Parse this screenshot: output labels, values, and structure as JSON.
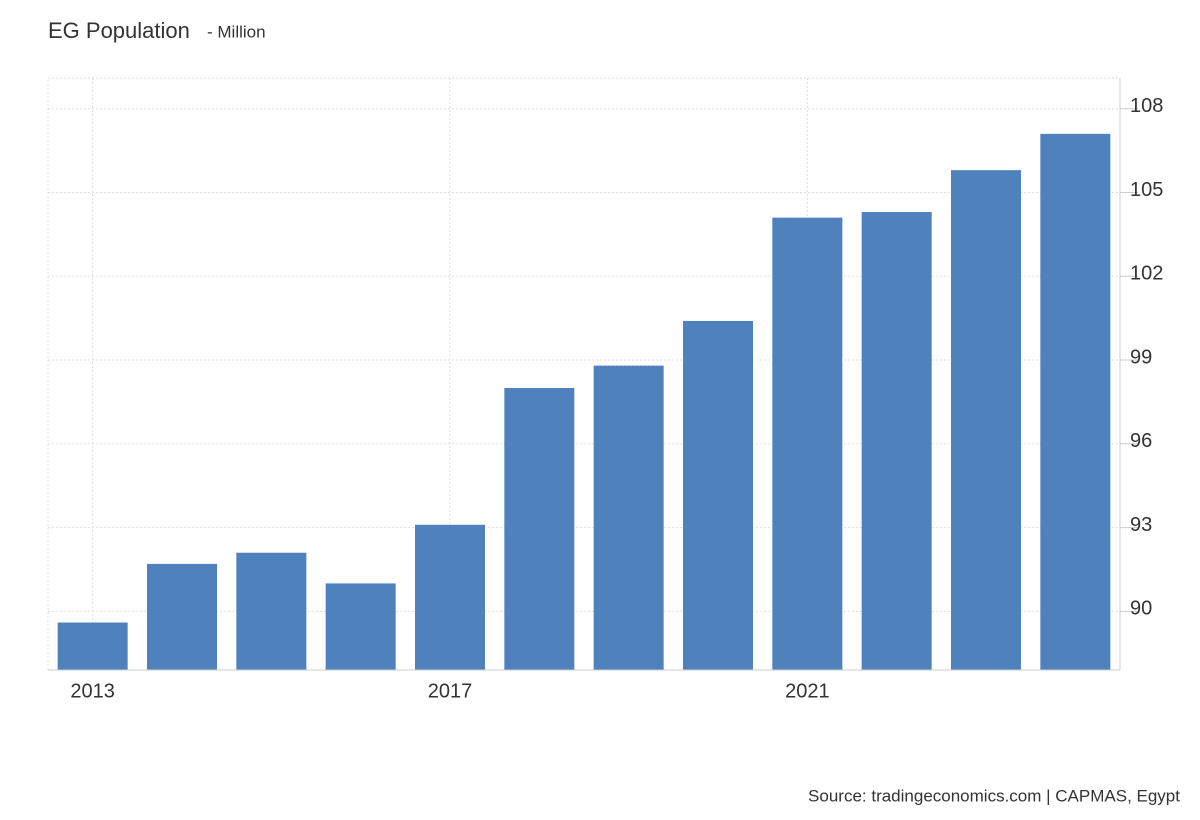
{
  "chart_data": {
    "type": "bar",
    "title": "EG Population",
    "subtitle": "- Million",
    "categories": [
      "2013",
      null,
      null,
      null,
      "2017",
      null,
      null,
      null,
      "2021",
      null,
      null,
      null
    ],
    "values": [
      89.6,
      91.7,
      92.1,
      91.0,
      93.1,
      98.0,
      98.8,
      100.4,
      104.1,
      104.3,
      105.8,
      107.1
    ],
    "color": "#4f81bd",
    "ylim": [
      87.9,
      109.1
    ],
    "yticks": [
      90,
      93,
      96,
      99,
      102,
      105,
      108
    ],
    "grid": true,
    "source": "Source: tradingeconomics.com | CAPMAS, Egypt"
  }
}
